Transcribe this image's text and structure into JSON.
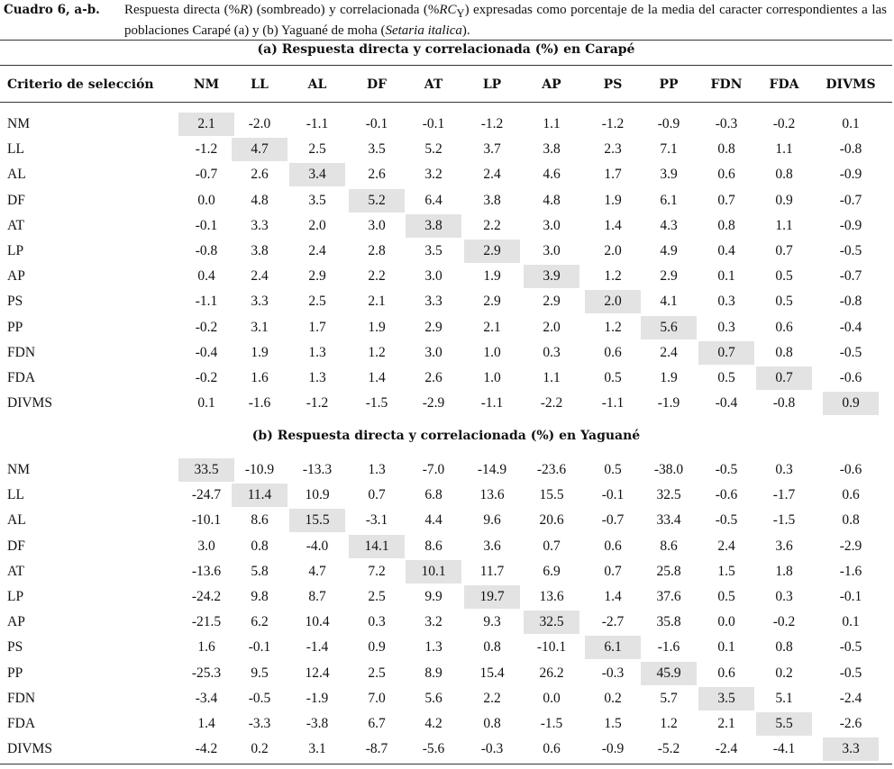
{
  "caption": {
    "label": "Cuadro 6, a-b.",
    "parts": [
      "Respuesta directa (%",
      "R",
      ") (sombreado) y correlacionada (%",
      "RC",
      "Y",
      ") expresadas como porcentaje de la media del caracter correspondientes a las poblaciones Carapé (a) y (b) Yaguané de moha (",
      "Setaria italica",
      ")."
    ]
  },
  "table": {
    "header": [
      "Criterio de selección",
      "NM",
      "LL",
      "AL",
      "DF",
      "AT",
      "LP",
      "AP",
      "PS",
      "PP",
      "FDN",
      "FDA",
      "DIVMS"
    ],
    "sections": [
      {
        "title": "(a) Respuesta directa y correlacionada (%) en Carapé",
        "rows": [
          {
            "label": "NM",
            "values": [
              "2.1",
              "-2.0",
              "-1.1",
              "-0.1",
              "-0.1",
              "-1.2",
              "1.1",
              "-1.2",
              "-0.9",
              "-0.3",
              "-0.2",
              "0.1"
            ]
          },
          {
            "label": "LL",
            "values": [
              "-1.2",
              "4.7",
              "2.5",
              "3.5",
              "5.2",
              "3.7",
              "3.8",
              "2.3",
              "7.1",
              "0.8",
              "1.1",
              "-0.8"
            ]
          },
          {
            "label": "AL",
            "values": [
              "-0.7",
              "2.6",
              "3.4",
              "2.6",
              "3.2",
              "2.4",
              "4.6",
              "1.7",
              "3.9",
              "0.6",
              "0.8",
              "-0.9"
            ]
          },
          {
            "label": "DF",
            "values": [
              "0.0",
              "4.8",
              "3.5",
              "5.2",
              "6.4",
              "3.8",
              "4.8",
              "1.9",
              "6.1",
              "0.7",
              "0.9",
              "-0.7"
            ]
          },
          {
            "label": "AT",
            "values": [
              "-0.1",
              "3.3",
              "2.0",
              "3.0",
              "3.8",
              "2.2",
              "3.0",
              "1.4",
              "4.3",
              "0.8",
              "1.1",
              "-0.9"
            ]
          },
          {
            "label": "LP",
            "values": [
              "-0.8",
              "3.8",
              "2.4",
              "2.8",
              "3.5",
              "2.9",
              "3.0",
              "2.0",
              "4.9",
              "0.4",
              "0.7",
              "-0.5"
            ]
          },
          {
            "label": "AP",
            "values": [
              "0.4",
              "2.4",
              "2.9",
              "2.2",
              "3.0",
              "1.9",
              "3.9",
              "1.2",
              "2.9",
              "0.1",
              "0.5",
              "-0.7"
            ]
          },
          {
            "label": "PS",
            "values": [
              "-1.1",
              "3.3",
              "2.5",
              "2.1",
              "3.3",
              "2.9",
              "2.9",
              "2.0",
              "4.1",
              "0.3",
              "0.5",
              "-0.8"
            ]
          },
          {
            "label": "PP",
            "values": [
              "-0.2",
              "3.1",
              "1.7",
              "1.9",
              "2.9",
              "2.1",
              "2.0",
              "1.2",
              "5.6",
              "0.3",
              "0.6",
              "-0.4"
            ]
          },
          {
            "label": "FDN",
            "values": [
              "-0.4",
              "1.9",
              "1.3",
              "1.2",
              "3.0",
              "1.0",
              "0.3",
              "0.6",
              "2.4",
              "0.7",
              "0.8",
              "-0.5"
            ]
          },
          {
            "label": "FDA",
            "values": [
              "-0.2",
              "1.6",
              "1.3",
              "1.4",
              "2.6",
              "1.0",
              "1.1",
              "0.5",
              "1.9",
              "0.5",
              "0.7",
              "-0.6"
            ]
          },
          {
            "label": "DIVMS",
            "values": [
              "0.1",
              "-1.6",
              "-1.2",
              "-1.5",
              "-2.9",
              "-1.1",
              "-2.2",
              "-1.1",
              "-1.9",
              "-0.4",
              "-0.8",
              "0.9"
            ]
          }
        ]
      },
      {
        "title": "(b) Respuesta directa y correlacionada (%) en Yaguané",
        "rows": [
          {
            "label": "NM",
            "values": [
              "33.5",
              "-10.9",
              "-13.3",
              "1.3",
              "-7.0",
              "-14.9",
              "-23.6",
              "0.5",
              "-38.0",
              "-0.5",
              "0.3",
              "-0.6"
            ]
          },
          {
            "label": "LL",
            "values": [
              "-24.7",
              "11.4",
              "10.9",
              "0.7",
              "6.8",
              "13.6",
              "15.5",
              "-0.1",
              "32.5",
              "-0.6",
              "-1.7",
              "0.6"
            ]
          },
          {
            "label": "AL",
            "values": [
              "-10.1",
              "8.6",
              "15.5",
              "-3.1",
              "4.4",
              "9.6",
              "20.6",
              "-0.7",
              "33.4",
              "-0.5",
              "-1.5",
              "0.8"
            ]
          },
          {
            "label": "DF",
            "values": [
              "3.0",
              "0.8",
              "-4.0",
              "14.1",
              "8.6",
              "3.6",
              "0.7",
              "0.6",
              "8.6",
              "2.4",
              "3.6",
              "-2.9"
            ]
          },
          {
            "label": "AT",
            "values": [
              "-13.6",
              "5.8",
              "4.7",
              "7.2",
              "10.1",
              "11.7",
              "6.9",
              "0.7",
              "25.8",
              "1.5",
              "1.8",
              "-1.6"
            ]
          },
          {
            "label": "LP",
            "values": [
              "-24.2",
              "9.8",
              "8.7",
              "2.5",
              "9.9",
              "19.7",
              "13.6",
              "1.4",
              "37.6",
              "0.5",
              "0.3",
              "-0.1"
            ]
          },
          {
            "label": "AP",
            "values": [
              "-21.5",
              "6.2",
              "10.4",
              "0.3",
              "3.2",
              "9.3",
              "32.5",
              "-2.7",
              "35.8",
              "0.0",
              "-0.2",
              "0.1"
            ]
          },
          {
            "label": "PS",
            "values": [
              "1.6",
              "-0.1",
              "-1.4",
              "0.9",
              "1.3",
              "0.8",
              "-10.1",
              "6.1",
              "-1.6",
              "0.1",
              "0.8",
              "-0.5"
            ]
          },
          {
            "label": "PP",
            "values": [
              "-25.3",
              "9.5",
              "12.4",
              "2.5",
              "8.9",
              "15.4",
              "26.2",
              "-0.3",
              "45.9",
              "0.6",
              "0.2",
              "-0.5"
            ]
          },
          {
            "label": "FDN",
            "values": [
              "-3.4",
              "-0.5",
              "-1.9",
              "7.0",
              "5.6",
              "2.2",
              "0.0",
              "0.2",
              "5.7",
              "3.5",
              "5.1",
              "-2.4"
            ]
          },
          {
            "label": "FDA",
            "values": [
              "1.4",
              "-3.3",
              "-3.8",
              "6.7",
              "4.2",
              "0.8",
              "-1.5",
              "1.5",
              "1.2",
              "2.1",
              "5.5",
              "-2.6"
            ]
          },
          {
            "label": "DIVMS",
            "values": [
              "-4.2",
              "0.2",
              "3.1",
              "-8.7",
              "-5.6",
              "-0.3",
              "0.6",
              "-0.9",
              "-5.2",
              "-2.4",
              "-4.1",
              "3.3"
            ]
          }
        ]
      }
    ]
  }
}
